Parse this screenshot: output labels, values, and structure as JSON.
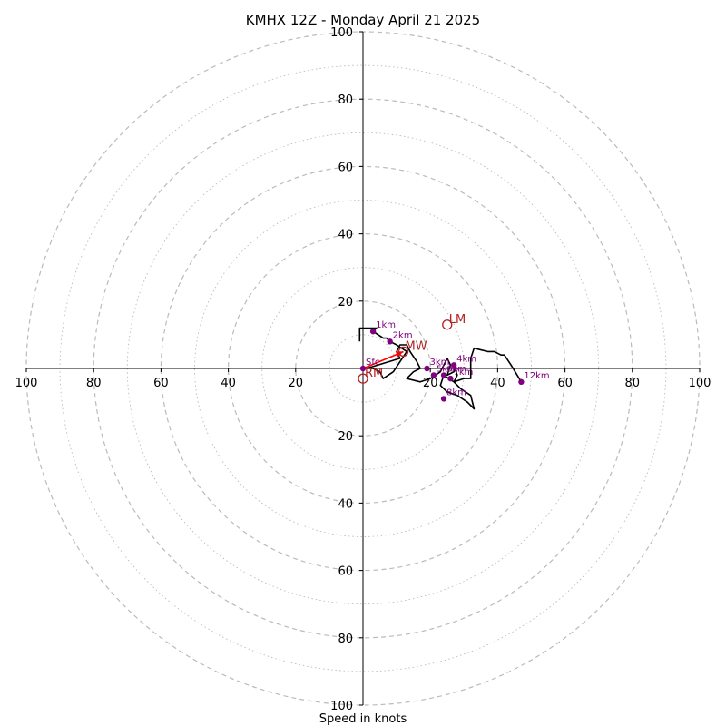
{
  "chart_data": {
    "type": "hodograph",
    "title": "KMHX 12Z - Monday April 21 2025",
    "xlabel": "Speed in knots",
    "max_speed": 100,
    "ring_labels": [
      "20",
      "40",
      "60",
      "80",
      "100"
    ],
    "x_tick_labels": [
      "100",
      "80",
      "60",
      "40",
      "20",
      "20",
      "40",
      "60",
      "80",
      "100"
    ],
    "y_tick_labels": [
      "100",
      "80",
      "60",
      "40",
      "20",
      "20",
      "40",
      "60",
      "80",
      "100"
    ],
    "grid": {
      "major_every": 20,
      "minor_every": 10
    },
    "colors": {
      "trace": "#000000",
      "height_marker": "#800080",
      "motion": "#b22222",
      "shear_vector": "#ff0000",
      "grid": "#bbbbbb"
    },
    "trace": [
      [
        -1,
        8
      ],
      [
        -1,
        12
      ],
      [
        4,
        12
      ],
      [
        3,
        11
      ],
      [
        6,
        9
      ],
      [
        7,
        9
      ],
      [
        8,
        8
      ],
      [
        10,
        7
      ],
      [
        13,
        5
      ],
      [
        11,
        2
      ],
      [
        9,
        -1
      ],
      [
        6,
        -3
      ],
      [
        5,
        -1
      ],
      [
        3,
        0
      ],
      [
        1,
        0
      ],
      [
        11,
        3
      ],
      [
        10,
        5
      ],
      [
        11,
        7
      ],
      [
        13,
        7
      ],
      [
        14,
        5
      ],
      [
        16,
        2
      ],
      [
        17,
        0
      ],
      [
        15,
        -1
      ],
      [
        13,
        -3
      ],
      [
        17,
        -4
      ],
      [
        20,
        -3
      ],
      [
        23,
        -1
      ],
      [
        24,
        1
      ],
      [
        25,
        3
      ],
      [
        26,
        1
      ],
      [
        25,
        -2
      ],
      [
        27,
        -1
      ],
      [
        27,
        1
      ],
      [
        28,
        -2
      ],
      [
        27,
        -4
      ],
      [
        24,
        -2
      ],
      [
        23,
        -5
      ],
      [
        25,
        -7
      ],
      [
        28,
        -8
      ],
      [
        31,
        -10
      ],
      [
        33,
        -12
      ],
      [
        32,
        -8
      ],
      [
        29,
        -6
      ],
      [
        27,
        -4
      ],
      [
        30,
        -3
      ],
      [
        32,
        -3
      ],
      [
        32,
        3
      ],
      [
        33,
        6
      ],
      [
        37,
        5
      ],
      [
        39,
        5
      ],
      [
        41,
        4
      ],
      [
        42,
        4
      ],
      [
        44,
        1
      ],
      [
        47,
        -4
      ]
    ],
    "height_markers": [
      {
        "label": "Sfc",
        "u": 0,
        "v": 0
      },
      {
        "label": "1km",
        "u": 3,
        "v": 11
      },
      {
        "label": "2km",
        "u": 8,
        "v": 8
      },
      {
        "label": "3km",
        "u": 19,
        "v": 0
      },
      {
        "label": "4km",
        "u": 27,
        "v": 1
      },
      {
        "label": "5km",
        "u": 21,
        "v": -2
      },
      {
        "label": "6km",
        "u": 24,
        "v": -2
      },
      {
        "label": "7km",
        "u": 26,
        "v": -3
      },
      {
        "label": "8km",
        "u": 24,
        "v": -9
      },
      {
        "label": "12km",
        "u": 47,
        "v": -4
      }
    ],
    "motions": [
      {
        "label": "LM",
        "u": 25,
        "v": 13
      },
      {
        "label": "MW",
        "u": 12,
        "v": 5
      },
      {
        "label": "RM",
        "u": 0,
        "v": -3
      }
    ],
    "shear_vector": {
      "from": [
        0,
        0
      ],
      "to": [
        12,
        5
      ]
    }
  }
}
